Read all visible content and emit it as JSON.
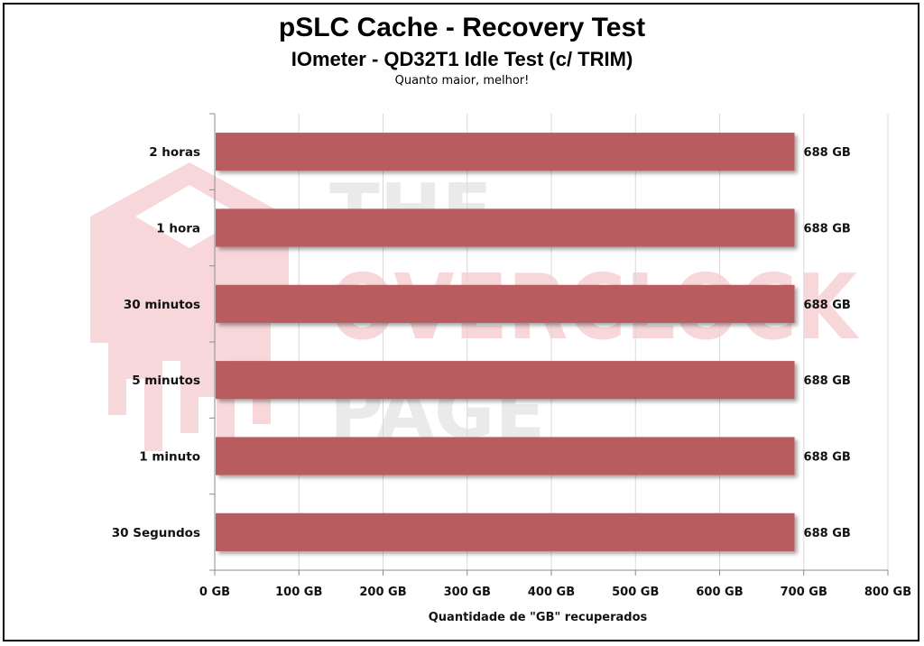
{
  "chart_data": {
    "type": "bar",
    "orientation": "horizontal",
    "title": "pSLC Cache - Recovery Test",
    "subtitle": "IOmeter - QD32T1 Idle Test (c/ TRIM)",
    "note": "Quanto maior, melhor!",
    "categories": [
      "2 horas",
      "1 hora",
      "30 minutos",
      "5 minutos",
      "1 minuto",
      "30 Segundos"
    ],
    "values": [
      688,
      688,
      688,
      688,
      688,
      688
    ],
    "value_labels": [
      "688 GB",
      "688 GB",
      "688 GB",
      "688 GB",
      "688 GB",
      "688 GB"
    ],
    "xlabel": "Quantidade de \"GB\" recuperados",
    "ylabel": "",
    "xlim": [
      0,
      800
    ],
    "xticks": [
      0,
      100,
      200,
      300,
      400,
      500,
      600,
      700,
      800
    ],
    "xtick_labels": [
      "0 GB",
      "100 GB",
      "200 GB",
      "300 GB",
      "400 GB",
      "500 GB",
      "600 GB",
      "700 GB",
      "800 GB"
    ],
    "grid": true,
    "legend": "none",
    "bar_color": "#b85c5f",
    "watermark": "THE OVERCLOCK PAGE"
  }
}
